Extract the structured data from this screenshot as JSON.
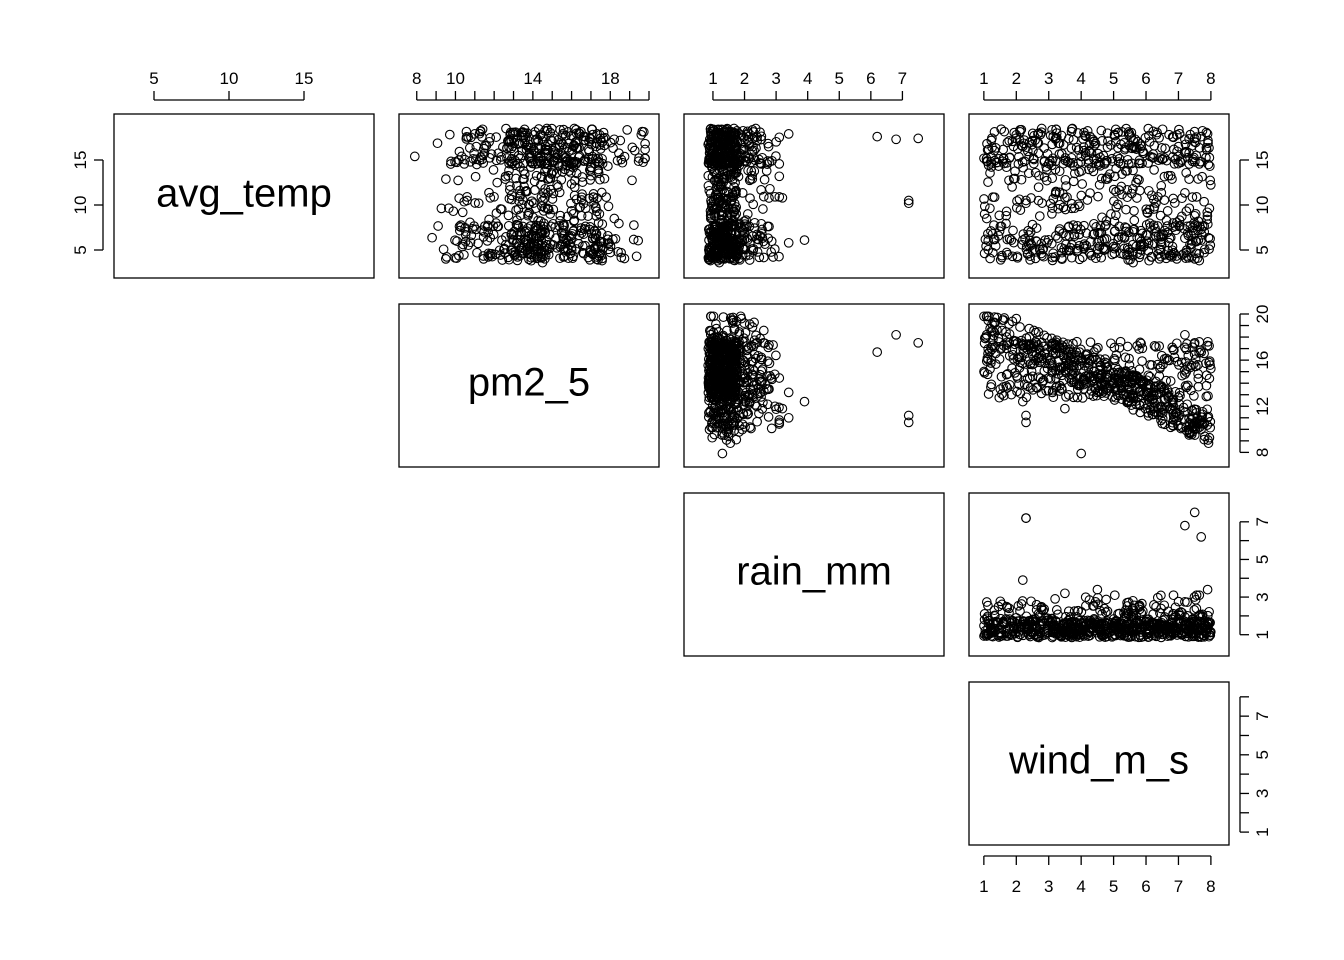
{
  "chart_data": {
    "type": "scatter",
    "variables": [
      "avg_temp",
      "pm2_5",
      "rain_mm",
      "wind_m_s"
    ],
    "axes": {
      "avg_temp": {
        "range": [
          3,
          19
        ],
        "ticks": [
          5,
          10,
          15
        ]
      },
      "pm2_5": {
        "range": [
          7.6,
          20
        ],
        "ticks_top": [
          8,
          10,
          14,
          18
        ],
        "ticks_right": [
          8,
          12,
          16,
          20
        ],
        "minor_ticks": [
          8,
          9,
          10,
          11,
          12,
          13,
          14,
          15,
          16,
          17,
          18,
          19,
          20
        ]
      },
      "rain_mm": {
        "range": [
          0.4,
          8
        ],
        "ticks_top": [
          1,
          2,
          3,
          4,
          5,
          6,
          7
        ],
        "ticks_right": [
          1,
          3,
          5,
          7
        ],
        "minor_ticks": [
          1,
          2,
          3,
          4,
          5,
          6,
          7
        ]
      },
      "wind_m_s": {
        "range": [
          0.85,
          8.25
        ],
        "ticks": [
          1,
          2,
          3,
          4,
          5,
          6,
          7,
          8
        ],
        "ticks_right": [
          1,
          3,
          5,
          7
        ],
        "minor_ticks": [
          1,
          2,
          3,
          4,
          5,
          6,
          7,
          8
        ]
      }
    },
    "sample_points": [
      {
        "avg_temp": 15.4,
        "pm2_5": 7.9,
        "rain_mm": 1.3,
        "wind_m_s": 4.0
      },
      {
        "avg_temp": 17.8,
        "pm2_5": 19.6,
        "rain_mm": 1.9,
        "wind_m_s": 2.0
      },
      {
        "avg_temp": 17.6,
        "pm2_5": 16.7,
        "rain_mm": 6.2,
        "wind_m_s": 7.7
      },
      {
        "avg_temp": 17.3,
        "pm2_5": 18.2,
        "rain_mm": 6.8,
        "wind_m_s": 7.2
      },
      {
        "avg_temp": 17.4,
        "pm2_5": 17.5,
        "rain_mm": 7.5,
        "wind_m_s": 7.5
      },
      {
        "avg_temp": 10.5,
        "pm2_5": 10.6,
        "rain_mm": 7.2,
        "wind_m_s": 2.3
      },
      {
        "avg_temp": 10.2,
        "pm2_5": 11.2,
        "rain_mm": 7.2,
        "wind_m_s": 2.3
      },
      {
        "avg_temp": 6.1,
        "pm2_5": 12.4,
        "rain_mm": 3.9,
        "wind_m_s": 2.2
      },
      {
        "avg_temp": 5.8,
        "pm2_5": 13.2,
        "rain_mm": 3.4,
        "wind_m_s": 4.5
      },
      {
        "avg_temp": 10.8,
        "pm2_5": 11.8,
        "rain_mm": 3.2,
        "wind_m_s": 3.5
      },
      {
        "avg_temp": 17.9,
        "pm2_5": 11.0,
        "rain_mm": 3.4,
        "wind_m_s": 7.9
      },
      {
        "avg_temp": 3.6,
        "pm2_5": 14.5,
        "rain_mm": 1.2,
        "wind_m_s": 5.6
      }
    ],
    "grid": false,
    "legend": "none",
    "title": "",
    "xlabel": "",
    "ylabel": ""
  }
}
